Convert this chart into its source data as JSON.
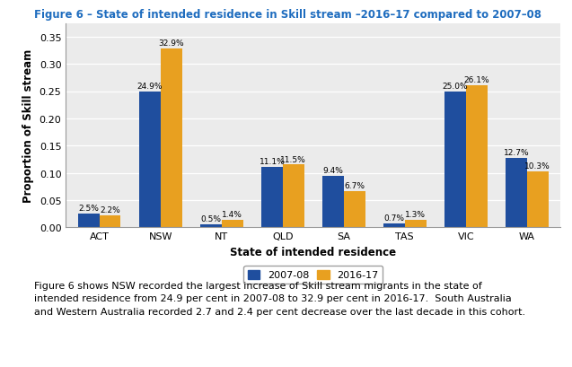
{
  "title": "Figure 6 – State of intended residence in Skill stream –2016–17 compared to 2007–08",
  "categories": [
    "ACT",
    "NSW",
    "NT",
    "QLD",
    "SA",
    "TAS",
    "VIC",
    "WA"
  ],
  "values_2007": [
    0.025,
    0.249,
    0.005,
    0.111,
    0.094,
    0.007,
    0.25,
    0.127
  ],
  "values_2016": [
    0.022,
    0.329,
    0.014,
    0.115,
    0.067,
    0.013,
    0.261,
    0.103
  ],
  "labels_2007": [
    "2.5%",
    "24.9%",
    "0.5%",
    "11.1%",
    "9.4%",
    "0.7%",
    "25.0%",
    "12.7%"
  ],
  "labels_2016": [
    "2.2%",
    "32.9%",
    "1.4%",
    "11.5%",
    "6.7%",
    "1.3%",
    "26.1%",
    "10.3%"
  ],
  "color_2007": "#1F4E9E",
  "color_2016": "#E8A020",
  "xlabel": "State of intended residence",
  "ylabel": "Proportion of Skill stream",
  "legend_2007": "2007-08",
  "legend_2016": "2016-17",
  "ylim": [
    0,
    0.375
  ],
  "yticks": [
    0.0,
    0.05,
    0.1,
    0.15,
    0.2,
    0.25,
    0.3,
    0.35
  ],
  "title_color": "#1F6DBF",
  "title_fontsize": 8.5,
  "axis_label_fontsize": 8.5,
  "tick_fontsize": 8,
  "bar_label_fontsize": 6.5,
  "caption": "Figure 6 shows NSW recorded the largest increase of Skill stream migrants in the state of\nintended residence from 24.9 per cent in 2007-08 to 32.9 per cent in 2016-17.  South Australia\nand Western Australia recorded 2.7 and 2.4 per cent decrease over the last decade in this cohort.",
  "caption_fontsize": 8.0,
  "background_color": "#EBEBEB"
}
